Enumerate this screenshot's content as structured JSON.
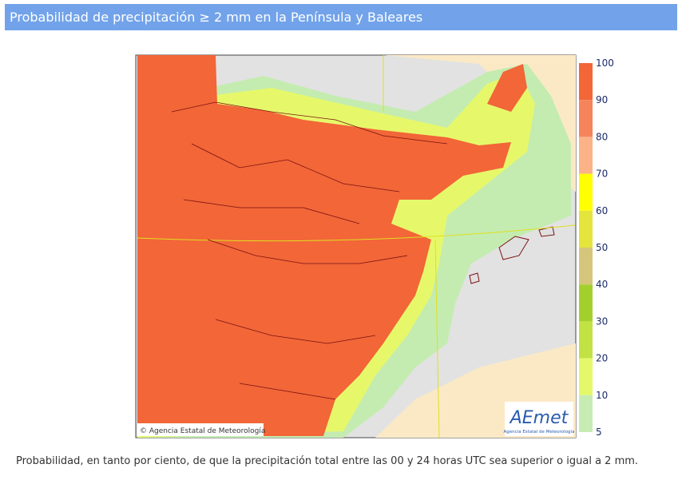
{
  "header": {
    "title": "Probabilidad de precipitación ≥ 2 mm en la Península y Baleares"
  },
  "map": {
    "copyright": "© Agencia Estatal de Meteorología",
    "logo": "AEmet",
    "logo_subtitle": "Agencia Estatal de Meteorología"
  },
  "legend": {
    "ticks": [
      100,
      90,
      80,
      70,
      60,
      50,
      40,
      30,
      20,
      10,
      5
    ],
    "colors": [
      "#f26638",
      "#f5845a",
      "#fbb287",
      "#ffff00",
      "#e4e43c",
      "#d6c67c",
      "#a4d02e",
      "#c2e244",
      "#e4f86a",
      "#c6ecb4"
    ]
  },
  "caption": "Probabilidad, en tanto por ciento, de que la precipitación total entre las 00 y 24 horas UTC sea superior o igual a 2 mm."
}
